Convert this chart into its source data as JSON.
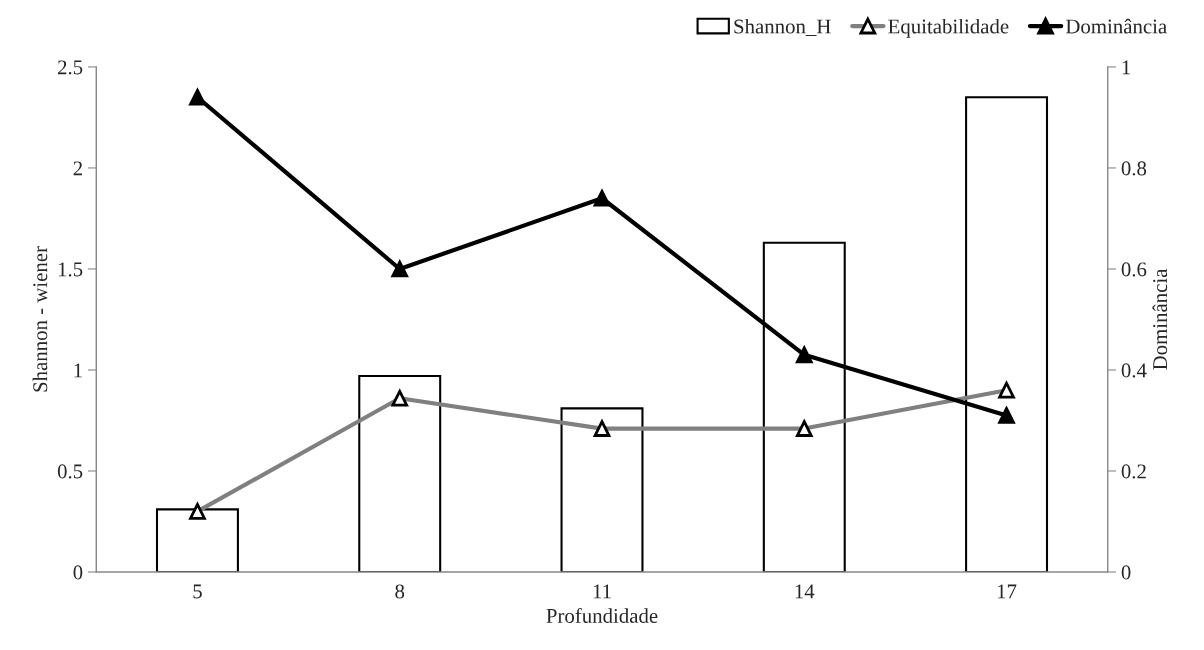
{
  "chart_data": {
    "type": "bar",
    "xlabel": "Profundidade",
    "ylabel": "Shannon - wiener",
    "y2label": "Dominância",
    "categories": [
      "5",
      "8",
      "11",
      "14",
      "17"
    ],
    "series": [
      {
        "name": "Shannon_H",
        "color": "#ffffff",
        "values": [
          0.31,
          0.97,
          0.81,
          1.63,
          2.35
        ]
      },
      {
        "name": "Equitabilidade",
        "type": "line",
        "color": "#808080",
        "marker": "triangle",
        "values": [
          0.3,
          0.86,
          0.71,
          0.71,
          0.9
        ]
      },
      {
        "name": "Dominância",
        "type": "line",
        "axis": "y2",
        "color": "#000000",
        "marker": "triangle",
        "values": [
          0.94,
          0.6,
          0.74,
          0.43,
          0.31
        ]
      }
    ],
    "ylim": [
      0,
      2.5
    ],
    "yticks": [
      0,
      0.5,
      1,
      1.5,
      2,
      2.5
    ],
    "y2lim": [
      0,
      1
    ],
    "y2ticks": [
      0,
      0.2,
      0.4,
      0.6,
      0.8,
      1
    ],
    "legend": "top right",
    "grid": false
  }
}
